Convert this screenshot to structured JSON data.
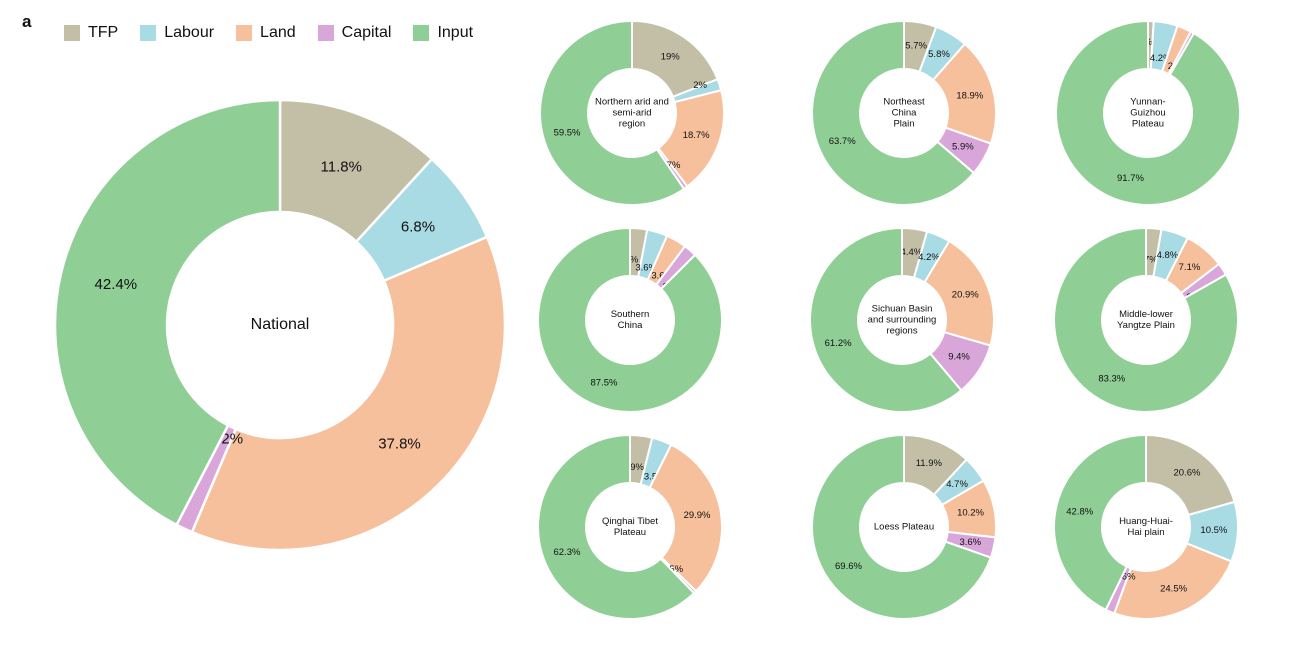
{
  "panel_label": "a",
  "legend": [
    {
      "name": "TFP",
      "color": "#c2bfa6"
    },
    {
      "name": "Labour",
      "color": "#a8dbe3"
    },
    {
      "name": "Land",
      "color": "#f6c09c"
    },
    {
      "name": "Capital",
      "color": "#d9a6d9"
    },
    {
      "name": "Input",
      "color": "#8fcf96"
    }
  ],
  "chart_data": [
    {
      "type": "pie",
      "subtype": "donut",
      "title": "National",
      "categories": [
        "TFP",
        "Labour",
        "Land",
        "Capital",
        "Input"
      ],
      "values": [
        11.8,
        6.8,
        37.8,
        1.2,
        42.4
      ],
      "labels": [
        "11.8%",
        "6.8%",
        "37.8%",
        "1.2%",
        "42.4%"
      ]
    },
    {
      "type": "pie",
      "subtype": "donut",
      "title": "Northern arid and semi-arid region",
      "categories": [
        "TFP",
        "Labour",
        "Land",
        "Capital",
        "Input"
      ],
      "values": [
        19,
        2,
        18.7,
        0.7,
        59.5
      ],
      "labels": [
        "19%",
        "2%",
        "18.7%",
        "0.7%",
        "59.5%"
      ]
    },
    {
      "type": "pie",
      "subtype": "donut",
      "title": "Northeast China Plain",
      "categories": [
        "TFP",
        "Labour",
        "Land",
        "Capital",
        "Input"
      ],
      "values": [
        5.7,
        5.8,
        18.9,
        5.9,
        63.7
      ],
      "labels": [
        "5.7%",
        "5.8%",
        "18.9%",
        "5.9%",
        "63.7%"
      ]
    },
    {
      "type": "pie",
      "subtype": "donut",
      "title": "Yunnan-Guizhou Plateau",
      "categories": [
        "TFP",
        "Labour",
        "Land",
        "Capital",
        "Input"
      ],
      "values": [
        1,
        4.2,
        2.5,
        0.6,
        91.7
      ],
      "labels": [
        "1%",
        "4.2%",
        "2.5%",
        "0.6%",
        "91.7%"
      ]
    },
    {
      "type": "pie",
      "subtype": "donut",
      "title": "Southern China",
      "categories": [
        "TFP",
        "Labour",
        "Land",
        "Capital",
        "Input"
      ],
      "values": [
        3,
        3.6,
        3.6,
        2.3,
        87.5
      ],
      "labels": [
        "3%",
        "3.6%",
        "3.6%",
        "2.3%",
        "87.5%"
      ]
    },
    {
      "type": "pie",
      "subtype": "donut",
      "title": "Sichuan Basin and surrounding regions",
      "categories": [
        "TFP",
        "Labour",
        "Land",
        "Capital",
        "Input"
      ],
      "values": [
        4.4,
        4.2,
        20.9,
        9.4,
        61.2
      ],
      "labels": [
        "4.4%",
        "4.2%",
        "20.9%",
        "9.4%",
        "61.2%"
      ]
    },
    {
      "type": "pie",
      "subtype": "donut",
      "title": "Middle-lower Yangtze Plain",
      "categories": [
        "TFP",
        "Labour",
        "Land",
        "Capital",
        "Input"
      ],
      "values": [
        2.7,
        4.8,
        7.1,
        2.2,
        83.3
      ],
      "labels": [
        "2.7%",
        "4.8%",
        "7.1%",
        "2.2%",
        "83.3%"
      ]
    },
    {
      "type": "pie",
      "subtype": "donut",
      "title": "Qinghai Tibet Plateau",
      "categories": [
        "TFP",
        "Labour",
        "Land",
        "Capital",
        "Input"
      ],
      "values": [
        3.9,
        3.5,
        29.9,
        0.5,
        62.3
      ],
      "labels": [
        "3.9%",
        "3.5%",
        "29.9%",
        "0.5%",
        "62.3%"
      ]
    },
    {
      "type": "pie",
      "subtype": "donut",
      "title": "Loess Plateau",
      "categories": [
        "TFP",
        "Labour",
        "Land",
        "Capital",
        "Input"
      ],
      "values": [
        11.9,
        4.7,
        10.2,
        3.6,
        69.6
      ],
      "labels": [
        "11.9%",
        "4.7%",
        "10.2%",
        "3.6%",
        "69.6%"
      ]
    },
    {
      "type": "pie",
      "subtype": "donut",
      "title": "Huang-Huai-Hai plain",
      "categories": [
        "TFP",
        "Labour",
        "Land",
        "Capital",
        "Input"
      ],
      "values": [
        20.6,
        10.5,
        24.5,
        1.6,
        42.8
      ],
      "labels": [
        "20.6%",
        "10.5%",
        "24.5%",
        "1.6%",
        "42.8%"
      ]
    }
  ]
}
